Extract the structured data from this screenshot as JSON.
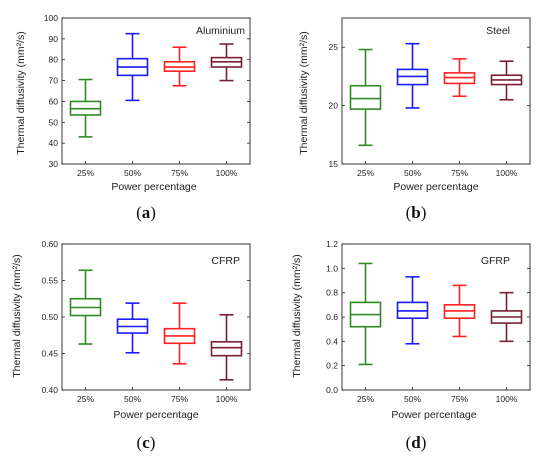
{
  "chart_data": [
    {
      "type": "box",
      "caption": "a",
      "title": "Aluminium",
      "xlabel": "Power percentage",
      "ylabel": "Thermal diffusivity (mm²/s)",
      "categories": [
        "25%",
        "50%",
        "75%",
        "100%"
      ],
      "ylim": [
        30,
        100
      ],
      "yticks": [
        30,
        40,
        50,
        60,
        70,
        80,
        90,
        100
      ],
      "colors": [
        "#2e8b22",
        "#1a1aff",
        "#ff2020",
        "#7a1e30"
      ],
      "boxes": [
        {
          "min": 43,
          "q1": 53.5,
          "median": 56.5,
          "q3": 60,
          "max": 70.5
        },
        {
          "min": 60.5,
          "q1": 72.5,
          "median": 76.5,
          "q3": 80.5,
          "max": 92.5
        },
        {
          "min": 67.5,
          "q1": 74.5,
          "median": 76.5,
          "q3": 79,
          "max": 86
        },
        {
          "min": 70,
          "q1": 76.5,
          "median": 79,
          "q3": 81,
          "max": 87.5
        }
      ]
    },
    {
      "type": "box",
      "caption": "b",
      "title": "Steel",
      "xlabel": "Power percentage",
      "ylabel": "Thermal diffusivity (mm²/s)",
      "categories": [
        "25%",
        "50%",
        "75%",
        "100%"
      ],
      "ylim": [
        15,
        27.5
      ],
      "yticks": [
        15,
        20,
        25
      ],
      "colors": [
        "#2e8b22",
        "#1a1aff",
        "#ff2020",
        "#7a1e30"
      ],
      "boxes": [
        {
          "min": 16.6,
          "q1": 19.7,
          "median": 20.6,
          "q3": 21.7,
          "max": 24.8
        },
        {
          "min": 19.8,
          "q1": 21.8,
          "median": 22.5,
          "q3": 23.1,
          "max": 25.3
        },
        {
          "min": 20.8,
          "q1": 21.9,
          "median": 22.4,
          "q3": 22.8,
          "max": 24.0
        },
        {
          "min": 20.5,
          "q1": 21.8,
          "median": 22.2,
          "q3": 22.6,
          "max": 23.8
        }
      ]
    },
    {
      "type": "box",
      "caption": "c",
      "title": "CFRP",
      "xlabel": "Power percentage",
      "ylabel": "Thermal diffusivity (mm²/s)",
      "categories": [
        "25%",
        "50%",
        "75%",
        "100%"
      ],
      "ylim": [
        0.4,
        0.6
      ],
      "yticks": [
        "0.40",
        "0.45",
        "0.50",
        "0.55",
        "0.60"
      ],
      "colors": [
        "#2e8b22",
        "#1a1aff",
        "#ff2020",
        "#7a1e30"
      ],
      "boxes": [
        {
          "min": 0.463,
          "q1": 0.502,
          "median": 0.513,
          "q3": 0.525,
          "max": 0.564
        },
        {
          "min": 0.451,
          "q1": 0.478,
          "median": 0.487,
          "q3": 0.497,
          "max": 0.519
        },
        {
          "min": 0.436,
          "q1": 0.464,
          "median": 0.474,
          "q3": 0.484,
          "max": 0.519
        },
        {
          "min": 0.414,
          "q1": 0.447,
          "median": 0.458,
          "q3": 0.466,
          "max": 0.503
        }
      ]
    },
    {
      "type": "box",
      "caption": "d",
      "title": "GFRP",
      "xlabel": "Power percentage",
      "ylabel": "Thermal diffusivity (mm²/s)",
      "categories": [
        "25%",
        "50%",
        "75%",
        "100%"
      ],
      "ylim": [
        0.0,
        1.2
      ],
      "yticks": [
        "0.0",
        "0.2",
        "0.4",
        "0.6",
        "0.8",
        "1.0",
        "1.2"
      ],
      "colors": [
        "#2e8b22",
        "#1a1aff",
        "#ff2020",
        "#7a1e30"
      ],
      "boxes": [
        {
          "min": 0.21,
          "q1": 0.52,
          "median": 0.62,
          "q3": 0.72,
          "max": 1.04
        },
        {
          "min": 0.38,
          "q1": 0.59,
          "median": 0.65,
          "q3": 0.72,
          "max": 0.93
        },
        {
          "min": 0.44,
          "q1": 0.59,
          "median": 0.65,
          "q3": 0.7,
          "max": 0.86
        },
        {
          "min": 0.4,
          "q1": 0.55,
          "median": 0.6,
          "q3": 0.65,
          "max": 0.8
        }
      ]
    }
  ]
}
